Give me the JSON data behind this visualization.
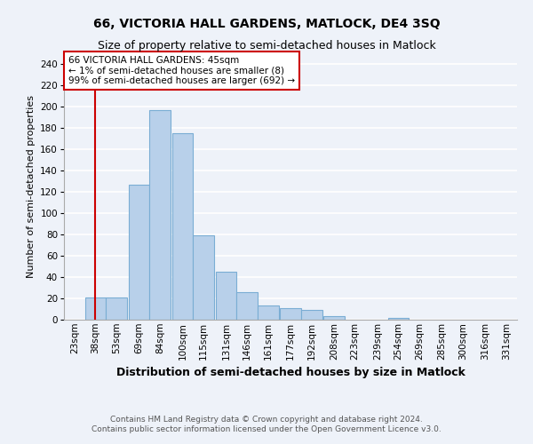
{
  "title": "66, VICTORIA HALL GARDENS, MATLOCK, DE4 3SQ",
  "subtitle": "Size of property relative to semi-detached houses in Matlock",
  "xlabel": "Distribution of semi-detached houses by size in Matlock",
  "ylabel": "Number of semi-detached properties",
  "footer1": "Contains HM Land Registry data © Crown copyright and database right 2024.",
  "footer2": "Contains public sector information licensed under the Open Government Licence v3.0.",
  "annotation_line1": "66 VICTORIA HALL GARDENS: 45sqm",
  "annotation_line2": "← 1% of semi-detached houses are smaller (8)",
  "annotation_line3": "99% of semi-detached houses are larger (692) →",
  "bar_color": "#b8d0ea",
  "bar_edge_color": "#7aadd4",
  "red_line_x": 45,
  "categories": [
    "23sqm",
    "38sqm",
    "53sqm",
    "69sqm",
    "84sqm",
    "100sqm",
    "115sqm",
    "131sqm",
    "146sqm",
    "161sqm",
    "177sqm",
    "192sqm",
    "208sqm",
    "223sqm",
    "239sqm",
    "254sqm",
    "269sqm",
    "285sqm",
    "300sqm",
    "316sqm",
    "331sqm"
  ],
  "bin_edges": [
    23,
    38,
    53,
    69,
    84,
    100,
    115,
    131,
    146,
    161,
    177,
    192,
    208,
    223,
    239,
    254,
    269,
    285,
    300,
    316,
    331
  ],
  "bin_width": 15,
  "values": [
    0,
    21,
    21,
    127,
    197,
    175,
    79,
    45,
    26,
    13,
    11,
    9,
    3,
    0,
    0,
    2,
    0,
    0,
    0,
    0,
    0
  ],
  "ylim": [
    0,
    250
  ],
  "yticks": [
    0,
    20,
    40,
    60,
    80,
    100,
    120,
    140,
    160,
    180,
    200,
    220,
    240
  ],
  "background_color": "#eef2f9",
  "grid_color": "#ffffff",
  "title_fontsize": 10,
  "subtitle_fontsize": 9,
  "xlabel_fontsize": 9,
  "ylabel_fontsize": 8,
  "tick_fontsize": 7.5,
  "annotation_fontsize": 7.5,
  "footer_fontsize": 6.5,
  "annotation_box_color": "#ffffff",
  "annotation_box_edge": "#cc0000",
  "red_line_color": "#cc0000",
  "spine_color": "#aaaaaa"
}
